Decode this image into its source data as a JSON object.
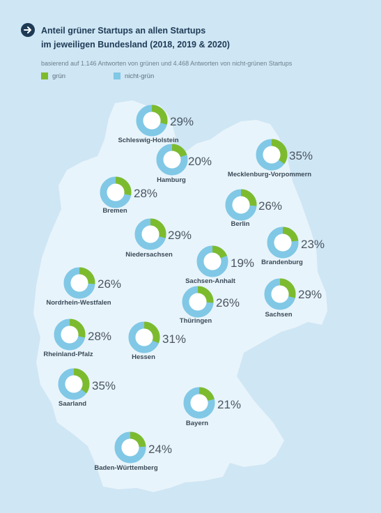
{
  "header": {
    "title_line1": "Anteil grüner Startups an allen Startups",
    "title_line2": "im jeweiligen Bundesland (2018, 2019 & 2020)",
    "subtitle": "basierend auf 1.146 Antworten von grünen und 4.468 Antworten von nicht-grünen Startups"
  },
  "legend": [
    {
      "label": "grün",
      "color": "#7dbb2e"
    },
    {
      "label": "nicht-grün",
      "color": "#80c8e6"
    }
  ],
  "colors": {
    "background": "#cfe6f4",
    "map_fill": "#e8f4fb",
    "green": "#7dbb2e",
    "non_green": "#80c8e6",
    "title": "#1e3a55"
  },
  "chart_data": {
    "type": "pie",
    "variant": "donut-per-region",
    "title": "Anteil grüner Startups an allen Startups im jeweiligen Bundesland (2018, 2019 & 2020)",
    "series_names": [
      "grün",
      "nicht-grün"
    ],
    "unit": "%",
    "regions": [
      {
        "name": "Schleswig-Holstein",
        "value": 29,
        "label": "29%"
      },
      {
        "name": "Hamburg",
        "value": 20,
        "label": "20%"
      },
      {
        "name": "Mecklenburg-Vorpommern",
        "value": 35,
        "label": "35%"
      },
      {
        "name": "Bremen",
        "value": 28,
        "label": "28%"
      },
      {
        "name": "Berlin",
        "value": 26,
        "label": "26%"
      },
      {
        "name": "Niedersachsen",
        "value": 29,
        "label": "29%"
      },
      {
        "name": "Brandenburg",
        "value": 23,
        "label": "23%"
      },
      {
        "name": "Sachsen-Anhalt",
        "value": 19,
        "label": "19%"
      },
      {
        "name": "Nordrhein-Westfalen",
        "value": 26,
        "label": "26%"
      },
      {
        "name": "Thüringen",
        "value": 26,
        "label": "26%"
      },
      {
        "name": "Sachsen",
        "value": 29,
        "label": "29%"
      },
      {
        "name": "Rheinland-Pfalz",
        "value": 28,
        "label": "28%"
      },
      {
        "name": "Hessen",
        "value": 31,
        "label": "31%"
      },
      {
        "name": "Saarland",
        "value": 35,
        "label": "35%"
      },
      {
        "name": "Bayern",
        "value": 21,
        "label": "21%"
      },
      {
        "name": "Baden-Württemberg",
        "value": 24,
        "label": "24%"
      }
    ]
  }
}
